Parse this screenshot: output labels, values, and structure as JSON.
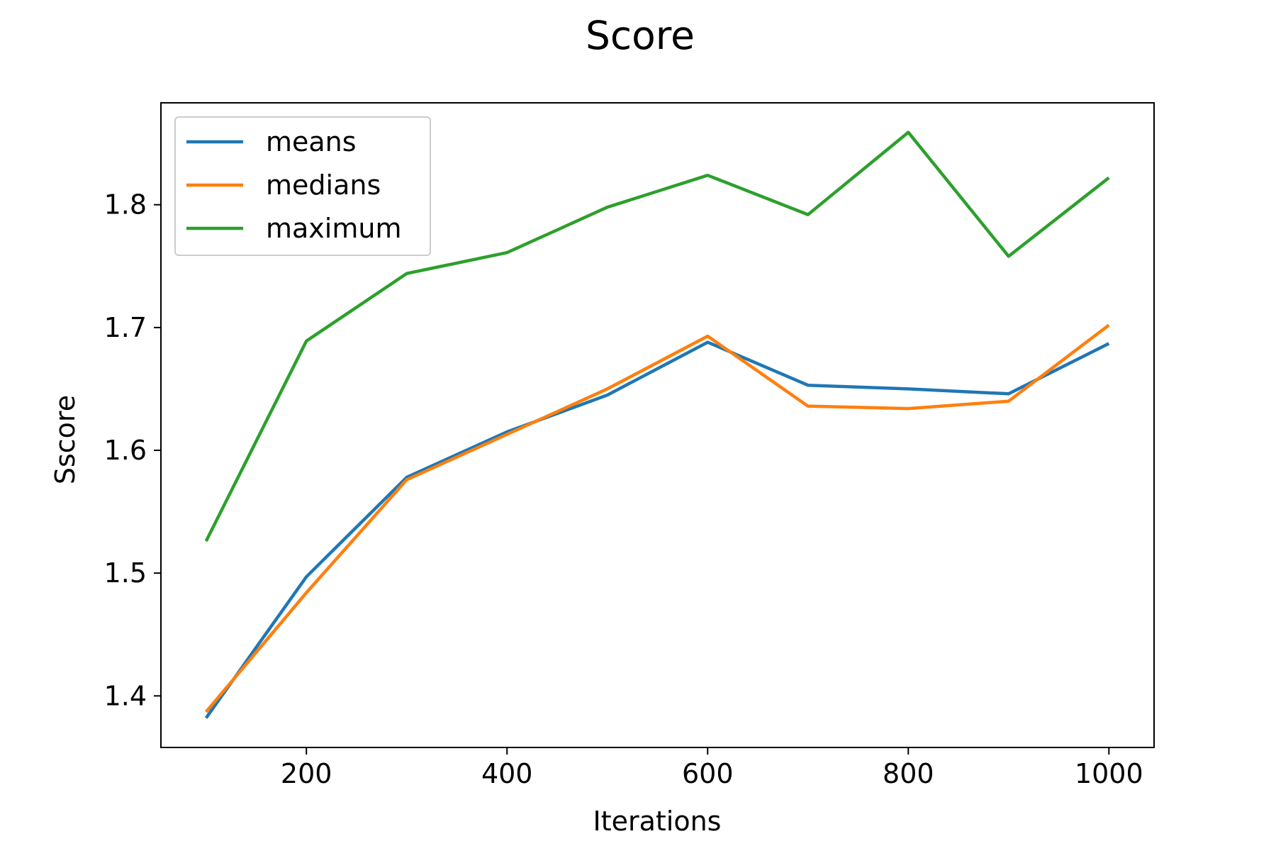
{
  "chart_data": {
    "type": "line",
    "title": "Score",
    "xlabel": "Iterations",
    "ylabel": "Sscore",
    "x": [
      100,
      200,
      300,
      400,
      500,
      600,
      700,
      800,
      900,
      1000
    ],
    "xlim": [
      55,
      1045
    ],
    "ylim": [
      1.358,
      1.883
    ],
    "xticks": [
      200,
      400,
      600,
      800,
      1000
    ],
    "yticks": [
      1.4,
      1.5,
      1.6,
      1.7,
      1.8
    ],
    "xtick_labels": [
      "200",
      "400",
      "600",
      "800",
      "1000"
    ],
    "ytick_labels": [
      "1.4",
      "1.5",
      "1.6",
      "1.7",
      "1.8"
    ],
    "grid": false,
    "legend_position": "top-left",
    "series": [
      {
        "name": "means",
        "color": "#1f77b4",
        "values": [
          1.382,
          1.497,
          1.578,
          1.615,
          1.645,
          1.688,
          1.653,
          1.65,
          1.646,
          1.687
        ]
      },
      {
        "name": "medians",
        "color": "#ff7f0e",
        "values": [
          1.387,
          1.484,
          1.576,
          1.613,
          1.65,
          1.693,
          1.636,
          1.634,
          1.64,
          1.702
        ]
      },
      {
        "name": "maximum",
        "color": "#2ca02c",
        "values": [
          1.526,
          1.689,
          1.744,
          1.761,
          1.798,
          1.824,
          1.792,
          1.859,
          1.758,
          1.822
        ]
      }
    ]
  }
}
